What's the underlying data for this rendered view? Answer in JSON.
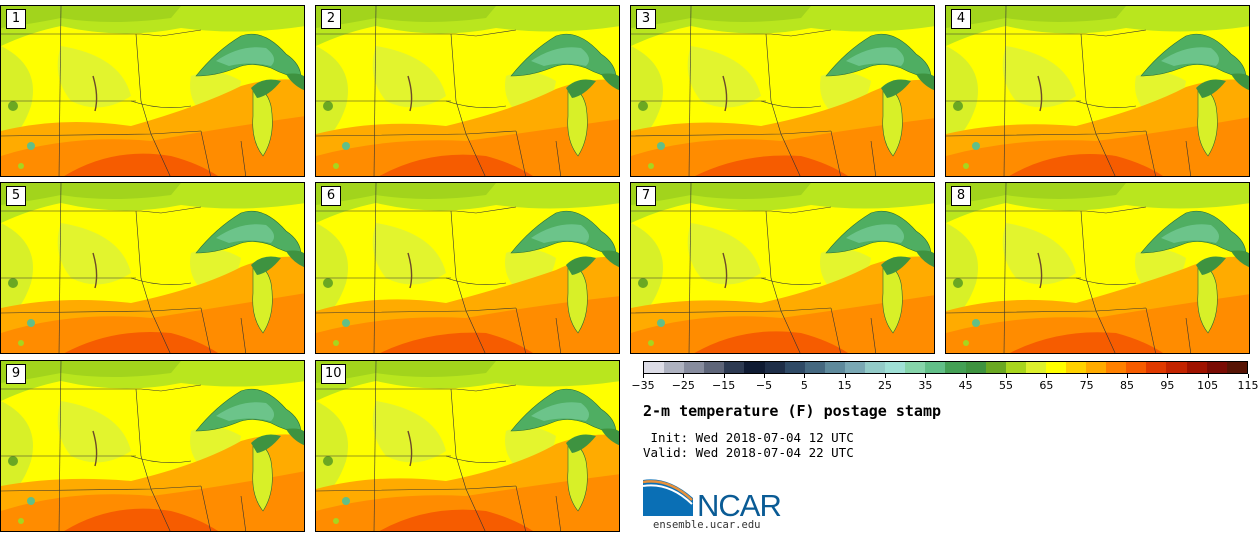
{
  "figure": {
    "title": "2-m temperature (F) postage stamp",
    "init_line": " Init: Wed 2018-07-04 12 UTC",
    "valid_line": "Valid: Wed 2018-07-04 22 UTC"
  },
  "panels": [
    {
      "label": "1"
    },
    {
      "label": "2"
    },
    {
      "label": "3"
    },
    {
      "label": "4"
    },
    {
      "label": "5"
    },
    {
      "label": "6"
    },
    {
      "label": "7"
    },
    {
      "label": "8"
    },
    {
      "label": "9"
    },
    {
      "label": "10"
    }
  ],
  "colorbar": {
    "ticks": [
      "−35",
      "−25",
      "−15",
      "−5",
      "5",
      "15",
      "25",
      "35",
      "45",
      "55",
      "65",
      "75",
      "85",
      "95",
      "105",
      "115"
    ],
    "colors": [
      "#dcdce6",
      "#aeb2c0",
      "#878c9e",
      "#5e6579",
      "#2d3a52",
      "#0f1b33",
      "#1e2e48",
      "#2f4a66",
      "#456880",
      "#5f8a9c",
      "#7aa8b4",
      "#93cbc8",
      "#9fe0d6",
      "#86d4aa",
      "#62bf88",
      "#44a055",
      "#3e9340",
      "#6aa822",
      "#a8d51e",
      "#ddf02d",
      "#ffff00",
      "#ffd200",
      "#ffab00",
      "#ff8000",
      "#f65c00",
      "#e03a00",
      "#c32400",
      "#9f1300",
      "#7a0c04",
      "#571405"
    ],
    "min": -35,
    "max": 115
  },
  "logo": {
    "text": "NCAR",
    "url": "ensemble.ucar.edu",
    "color": "#0a5b95"
  }
}
